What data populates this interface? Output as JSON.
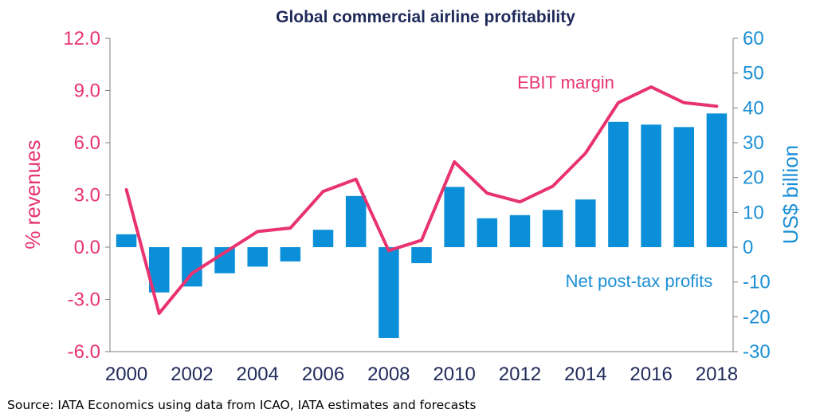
{
  "chart_data": {
    "type": "bar+line",
    "title": "Global commercial airline profitability",
    "x": [
      2000,
      2001,
      2002,
      2003,
      2004,
      2005,
      2006,
      2007,
      2008,
      2009,
      2010,
      2011,
      2012,
      2013,
      2014,
      2015,
      2016,
      2017,
      2018
    ],
    "x_tick_labels": [
      "2000",
      "2002",
      "2004",
      "2006",
      "2008",
      "2010",
      "2012",
      "2014",
      "2016",
      "2018"
    ],
    "left_axis": {
      "label": "% revenues",
      "ylim": [
        -6.0,
        12.0
      ],
      "tick_labels": [
        "12.0",
        "9.0",
        "6.0",
        "3.0",
        "0.0",
        "-3.0",
        "-6.0"
      ],
      "tick_values": [
        12,
        9,
        6,
        3,
        0,
        -3,
        -6
      ],
      "color": "#e8336f"
    },
    "right_axis": {
      "label": "US$ billion",
      "ylim": [
        -30,
        60
      ],
      "tick_labels": [
        "60",
        "50",
        "40",
        "30",
        "20",
        "10",
        "0",
        "-10",
        "-20",
        "-30"
      ],
      "tick_values": [
        60,
        50,
        40,
        30,
        20,
        10,
        0,
        -10,
        -20,
        -30
      ],
      "color": "#1a8fd6"
    },
    "series": [
      {
        "name": "Net post-tax profits",
        "type": "bar",
        "axis": "right",
        "color": "#0b8fd8",
        "values": [
          3.7,
          -13.0,
          -11.3,
          -7.5,
          -5.6,
          -4.1,
          5.0,
          14.7,
          -26.1,
          -4.6,
          17.3,
          8.3,
          9.2,
          10.7,
          13.7,
          36.0,
          35.2,
          34.5,
          38.4
        ]
      },
      {
        "name": "EBIT margin",
        "type": "line",
        "axis": "left",
        "color": "#e8336f",
        "values": [
          3.3,
          -3.8,
          -1.5,
          -0.3,
          0.9,
          1.1,
          3.2,
          3.9,
          -0.2,
          0.4,
          4.9,
          3.1,
          2.6,
          3.5,
          5.4,
          8.3,
          9.2,
          8.3,
          8.1
        ]
      }
    ],
    "annotations": {
      "line_label": "EBIT margin",
      "bar_label": "Net post-tax profits"
    },
    "grid": false,
    "legend": "none (inline annotations)"
  },
  "source_text": "Source: IATA Economics using data from ICAO, IATA estimates and forecasts"
}
